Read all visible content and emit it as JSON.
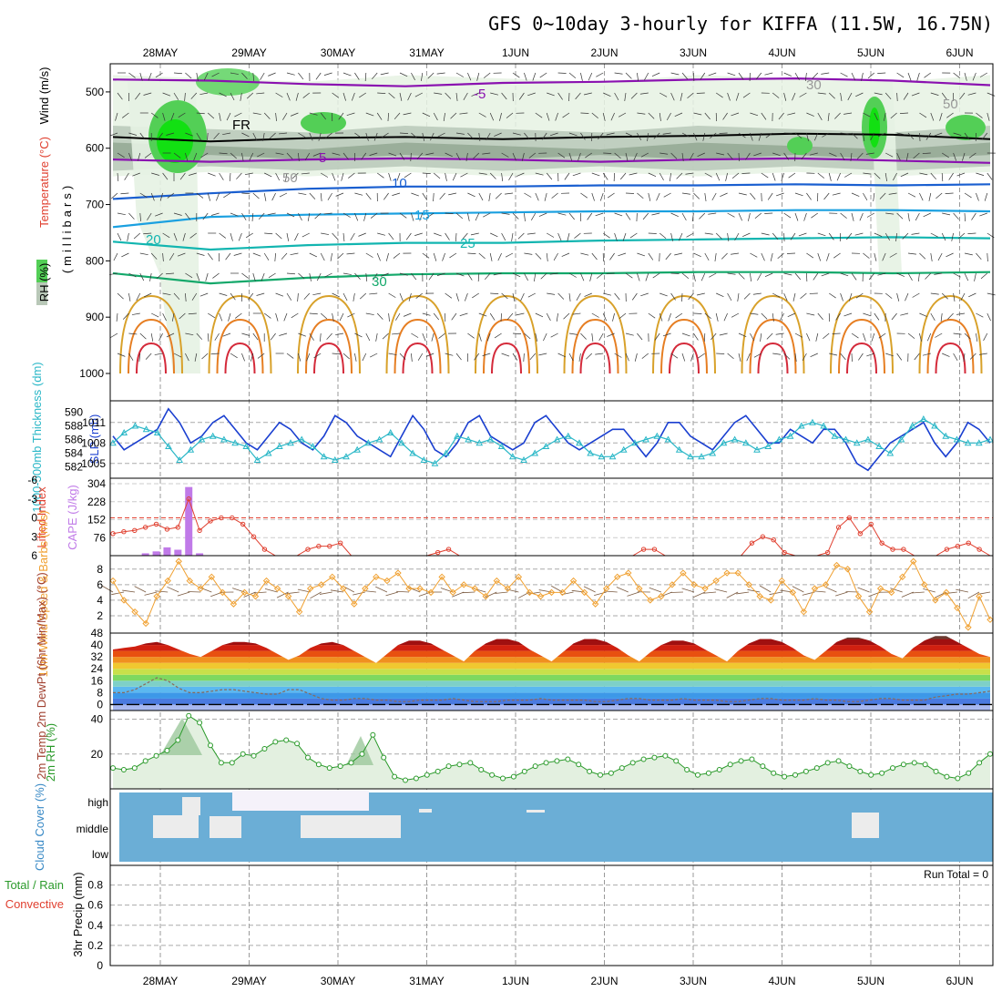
{
  "title": "GFS 0~10day 3-hourly for KIFFA (11.5W, 16.75N)",
  "dates": [
    "28MAY",
    "29MAY",
    "30MAY",
    "31MAY",
    "1JUN",
    "2JUN",
    "3JUN",
    "4JUN",
    "5JUN",
    "6JUN"
  ],
  "colors": {
    "rh_light": "#e6f2e3",
    "rh_mid": "#b9c8b8",
    "rh_dark": "#93a893",
    "rh_green": "#53cf56",
    "rh_bright": "#12e012",
    "purple": "#8a11b0",
    "blue": "#1a5fd0",
    "light_blue": "#1aa0e0",
    "teal": "#12b5b0",
    "green_line": "#13a86a",
    "gold": "#d8a12a",
    "orange": "#e67e22",
    "red": "#d42a3a",
    "slp": "#1a3fd0",
    "thick": "#2ab7c7",
    "li": "#e04030",
    "cape": "#c07ae8",
    "wind": "#f0a030",
    "barb": "#7a5a40",
    "dew": "#8a6a5a",
    "rh2m": "#2a9a2a",
    "cloud_bg": "#6baed6",
    "cloud": "#ececec",
    "cloud_high": "#f5f2fa"
  },
  "chart_data": [
    {
      "type": "heatmap",
      "name": "upper-air",
      "ylabel": "(millibars)",
      "legend_labels": [
        "Wind (m/s)",
        "Temperature (°C)",
        "RH (%)"
      ],
      "yticks": [
        500,
        600,
        700,
        800,
        900,
        1000
      ],
      "ylim": [
        1000,
        450
      ],
      "contour_labels": [
        "-5",
        "5",
        "FR",
        "10",
        "15",
        "20",
        "25",
        "30",
        "30",
        "50",
        "50"
      ],
      "isotherms_mb": [
        {
          "label": "-5",
          "color": "purple",
          "values": [
            478,
            480,
            486,
            490,
            484,
            482,
            478,
            476,
            480,
            488
          ]
        },
        {
          "label": "FR",
          "color": "black",
          "values": [
            580,
            588,
            582,
            580,
            584,
            580,
            578,
            574,
            576,
            584
          ]
        },
        {
          "label": "5",
          "color": "purple",
          "values": [
            620,
            624,
            620,
            618,
            620,
            624,
            620,
            618,
            622,
            626
          ]
        },
        {
          "label": "10",
          "color": "blue",
          "values": [
            690,
            680,
            672,
            668,
            668,
            666,
            666,
            664,
            666,
            664
          ]
        },
        {
          "label": "15",
          "color": "light_blue",
          "values": [
            740,
            722,
            718,
            716,
            714,
            712,
            712,
            710,
            710,
            712
          ]
        },
        {
          "label": "20",
          "color": "teal",
          "values": [
            766,
            780,
            772,
            768,
            768,
            764,
            762,
            760,
            758,
            760
          ]
        },
        {
          "label": "25",
          "color": "green_line",
          "values": [
            822,
            840,
            830,
            824,
            822,
            822,
            820,
            820,
            822,
            820
          ]
        }
      ],
      "moist_bands_mb": [
        [
          470,
          650
        ],
        [
          560,
          640
        ],
        [
          590,
          620
        ]
      ]
    },
    {
      "type": "line",
      "name": "slp-thickness",
      "ylabel_left": "1000-500mb Thickness (dm)",
      "ylabel_right": "SLP (mb)",
      "yticks_left": [
        582,
        584,
        586,
        588,
        590
      ],
      "yticks_right": [
        1005,
        1008,
        1011
      ],
      "ylim_left": [
        581,
        591
      ],
      "x_hours": [
        0,
        3,
        6,
        9,
        12,
        15,
        18,
        21,
        24,
        27,
        30,
        33,
        36,
        39,
        42,
        45,
        48,
        51,
        54,
        57,
        60,
        63,
        66,
        69,
        72,
        75,
        78,
        81,
        84,
        87,
        90,
        93,
        96,
        99,
        102,
        105,
        108,
        111,
        114,
        117,
        120,
        123,
        126,
        129,
        132,
        135,
        138,
        141,
        144,
        147,
        150,
        153,
        156,
        159,
        162,
        165,
        168,
        171,
        174,
        177,
        180,
        183,
        186,
        189,
        192,
        195,
        198,
        201,
        204,
        207,
        210,
        213,
        216,
        219,
        222,
        225,
        228,
        231,
        234,
        237
      ],
      "series": [
        {
          "name": "SLP (mb)",
          "color": "slp",
          "values": [
            1009,
            1007,
            1008,
            1009,
            1010,
            1013,
            1011,
            1008,
            1009,
            1011,
            1012,
            1010,
            1008,
            1007,
            1009,
            1011,
            1010,
            1008,
            1007,
            1009,
            1012,
            1011,
            1009,
            1008,
            1007,
            1006,
            1009,
            1012,
            1010,
            1007,
            1006,
            1008,
            1011,
            1012,
            1009,
            1008,
            1007,
            1008,
            1011,
            1012,
            1010,
            1008,
            1007,
            1008,
            1009,
            1010,
            1010,
            1008,
            1006,
            1008,
            1011,
            1011,
            1009,
            1008,
            1007,
            1009,
            1011,
            1012,
            1010,
            1008,
            1008,
            1010,
            1009,
            1008,
            1010,
            1010,
            1008,
            1005,
            1004,
            1006,
            1008,
            1009,
            1010,
            1011,
            1008,
            1006,
            1008,
            1011,
            1010,
            1008
          ]
        },
        {
          "name": "1000-500mb Thickness (dm)",
          "color": "thick",
          "values": [
            585.5,
            587,
            588,
            587.5,
            587,
            585,
            583,
            584.5,
            586,
            586.5,
            586,
            585.5,
            585,
            583,
            584,
            585,
            585.5,
            586,
            585,
            583.5,
            583,
            583.5,
            584.5,
            585.5,
            586,
            587,
            585.5,
            584,
            583,
            582.5,
            584,
            586.5,
            586,
            585.5,
            586,
            585,
            583.5,
            583,
            584,
            585,
            586,
            586.5,
            585.5,
            584,
            583.5,
            583.5,
            584.5,
            585.5,
            586,
            586.5,
            586,
            584.5,
            583.5,
            583.5,
            584,
            585.5,
            586,
            585.5,
            584.5,
            585,
            586,
            586.5,
            588,
            588.5,
            588,
            586.5,
            586,
            585.5,
            586,
            585,
            584,
            586,
            588,
            589,
            588,
            586.5,
            586,
            585.5,
            585.5,
            586
          ]
        }
      ]
    },
    {
      "type": "line",
      "name": "lifted-index-cape",
      "ylabel_left": "Lifted Index",
      "ylabel_right": "CAPE (J/kg)",
      "yticks_left": [
        -6,
        -3,
        0,
        3,
        6
      ],
      "yticks_right": [
        76,
        152,
        228,
        304
      ],
      "ylim_left": [
        6,
        -6
      ],
      "series": [
        {
          "name": "Lifted Index",
          "color": "li",
          "values": [
            2.5,
            2.2,
            2.0,
            1.5,
            1.0,
            1.8,
            1.5,
            -3.0,
            2.0,
            0.5,
            0.0,
            0.0,
            1.0,
            3.0,
            5.0,
            6.5,
            7.0,
            7.0,
            5.0,
            4.5,
            4.5,
            4.0,
            6.5,
            7.0,
            7.0,
            7.0,
            7.0,
            6.5,
            7.0,
            7.0,
            5.5,
            5.0,
            6.0,
            7.0,
            6.5,
            7.0,
            7.0,
            7.0,
            7.0,
            7.0,
            7.0,
            7.0,
            7.0,
            7.0,
            7.0,
            7.0,
            7.0,
            7.0,
            7.0,
            5.0,
            5.0,
            6.5,
            7.0,
            7.0,
            7.0,
            7.0,
            7.0,
            7.0,
            6.0,
            4.0,
            3.0,
            3.5,
            5.5,
            7.0,
            7.0,
            7.0,
            5.5,
            1.5,
            0.0,
            2.5,
            1.0,
            4.0,
            5.0,
            5.0,
            7.0,
            7.0,
            7.0,
            5.0,
            4.5,
            4.0,
            5.0,
            6.0
          ]
        },
        {
          "name": "CAPE (J/kg)",
          "color": "cape",
          "type": "bar",
          "values": [
            0,
            0,
            0,
            10,
            18,
            35,
            25,
            290,
            10,
            0,
            0,
            0,
            0,
            0,
            0,
            0,
            0,
            0,
            0,
            0,
            0,
            0,
            0,
            0,
            0,
            0,
            0,
            0,
            0,
            0,
            0,
            0,
            0,
            0,
            0,
            0,
            0,
            0,
            0,
            0,
            0,
            0,
            0,
            0,
            0,
            0,
            0,
            0,
            0,
            0,
            0,
            0,
            0,
            0,
            0,
            0,
            0,
            0,
            0,
            0,
            0,
            0,
            0,
            0,
            0,
            0,
            0,
            0,
            0,
            0,
            0,
            0,
            0,
            0,
            0,
            0,
            0,
            0,
            0,
            0
          ]
        }
      ]
    },
    {
      "type": "line",
      "name": "10m-wind",
      "ylabel": "10m Wind Speed & Barbs (m/s)",
      "yticks": [
        2,
        4,
        6,
        8
      ],
      "ylim": [
        0,
        9.5
      ],
      "series": [
        {
          "name": "Speed",
          "color": "wind",
          "values": [
            6.5,
            4,
            2.5,
            1,
            4.5,
            6.5,
            9,
            6.5,
            5.5,
            7,
            5,
            3.5,
            5,
            4.5,
            6.5,
            5.5,
            4.5,
            2.5,
            5.5,
            6,
            7,
            5.5,
            3.5,
            5.5,
            7,
            6.5,
            7.5,
            5.5,
            5.5,
            5,
            7,
            5,
            6,
            5.5,
            4.5,
            6.5,
            5.5,
            7,
            5,
            4.5,
            5,
            5,
            6.5,
            5,
            3.5,
            5.5,
            7,
            7.5,
            5.5,
            4,
            4.5,
            6,
            7.5,
            6,
            5.5,
            6.5,
            7.5,
            7.5,
            6,
            4.5,
            4,
            6.5,
            5,
            2.5,
            5.5,
            6,
            8.5,
            8,
            4.5,
            2.5,
            5.5,
            5,
            7,
            9,
            6,
            4,
            5,
            3,
            0.5,
            4.5,
            1.5
          ]
        }
      ]
    },
    {
      "type": "area",
      "name": "2m-temperature",
      "ylabel": "2m Temp 2m DewPt (6hr Min/Max) (°C)",
      "yticks": [
        0,
        8,
        16,
        24,
        32,
        40,
        48
      ],
      "ylim": [
        -4,
        48
      ],
      "series": [
        {
          "name": "2m Temp",
          "values": [
            37,
            38,
            39,
            41,
            42,
            40,
            37,
            34,
            32,
            36,
            40,
            42,
            42,
            41,
            38,
            34,
            30,
            33,
            38,
            41,
            42,
            40,
            36,
            32,
            28,
            34,
            40,
            43,
            43,
            41,
            37,
            33,
            29,
            36,
            41,
            44,
            44,
            42,
            37,
            33,
            29,
            35,
            41,
            44,
            44,
            42,
            38,
            33,
            29,
            35,
            40,
            43,
            43,
            41,
            37,
            33,
            29,
            36,
            41,
            44,
            44,
            42,
            38,
            33,
            30,
            36,
            42,
            45,
            45,
            43,
            39,
            34,
            31,
            38,
            43,
            46,
            46,
            42,
            38,
            34,
            32
          ]
        },
        {
          "name": "2m DewPt",
          "color": "dew",
          "values": [
            8,
            8,
            10,
            14,
            18,
            16,
            11,
            8,
            8,
            9,
            10,
            10,
            9,
            8,
            7,
            7,
            10,
            10,
            7,
            4,
            3,
            3,
            4,
            4,
            3,
            3,
            2,
            2,
            3,
            3,
            3,
            4,
            3,
            2,
            2,
            2,
            3,
            3,
            3,
            4,
            3,
            3,
            3,
            3,
            2,
            2,
            3,
            4,
            4,
            3,
            3,
            3,
            4,
            3,
            3,
            3,
            2,
            2,
            3,
            4,
            4,
            3,
            3,
            3,
            4,
            3,
            3,
            2,
            2,
            3,
            4,
            4,
            3,
            3,
            3,
            5,
            6,
            7,
            7,
            8,
            9
          ]
        }
      ]
    },
    {
      "type": "area",
      "name": "2m-rh",
      "ylabel": "2m RH (%)",
      "yticks": [
        20,
        40
      ],
      "ylim": [
        0,
        45
      ],
      "series": [
        {
          "name": "2m RH",
          "color": "rh2m",
          "values": [
            12,
            11,
            12,
            16,
            19,
            22,
            28,
            42,
            38,
            25,
            15,
            15,
            20,
            19,
            23,
            27,
            28,
            26,
            18,
            14,
            12,
            13,
            15,
            20,
            31,
            18,
            7,
            5,
            6,
            8,
            10,
            13,
            14,
            15,
            11,
            8,
            6,
            7,
            10,
            13,
            15,
            16,
            17,
            14,
            10,
            8,
            9,
            12,
            15,
            17,
            18,
            19,
            16,
            11,
            8,
            9,
            11,
            14,
            16,
            17,
            13,
            9,
            7,
            8,
            10,
            12,
            15,
            16,
            13,
            10,
            8,
            9,
            12,
            14,
            15,
            14,
            10,
            7,
            6,
            9,
            15,
            20
          ]
        }
      ]
    },
    {
      "type": "heatmap",
      "name": "cloud-cover",
      "ylabel": "Cloud Cover (%)",
      "yticks": [
        "high",
        "middle",
        "low"
      ]
    },
    {
      "type": "bar",
      "name": "precipitation",
      "ylabel": "3hr Precip (mm)",
      "legend_labels": [
        "Total / Rain",
        "Convective"
      ],
      "yticks": [
        0,
        0.2,
        0.4,
        0.6,
        0.8
      ],
      "ylim": [
        0,
        0.95
      ],
      "annotation": "Run Total = 0",
      "series": [
        {
          "name": "Total / Rain",
          "values": []
        },
        {
          "name": "Convective",
          "values": []
        }
      ]
    }
  ]
}
